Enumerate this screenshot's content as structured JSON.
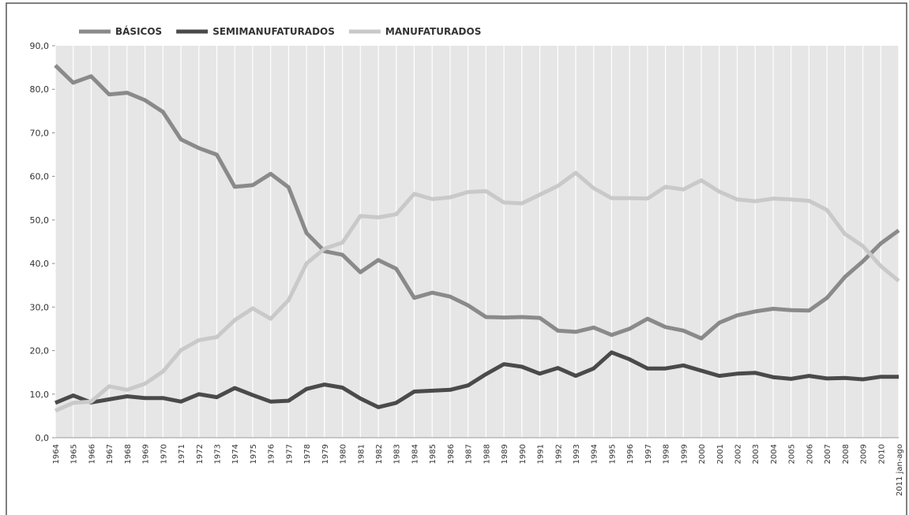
{
  "chart_data": {
    "type": "line",
    "categories": [
      "1964",
      "1965",
      "1966",
      "1967",
      "1968",
      "1969",
      "1970",
      "1971",
      "1972",
      "1973",
      "1974",
      "1975",
      "1976",
      "1977",
      "1978",
      "1979",
      "1980",
      "1981",
      "1982",
      "1983",
      "1984",
      "1985",
      "1986",
      "1987",
      "1988",
      "1989",
      "1990",
      "1991",
      "1992",
      "1993",
      "1994",
      "1995",
      "1996",
      "1997",
      "1998",
      "1999",
      "2000",
      "2001",
      "2002",
      "2003",
      "2004",
      "2005",
      "2006",
      "2007",
      "2008",
      "2009",
      "2010",
      "2011 jan-ago"
    ],
    "series": [
      {
        "name": "BÁSICOS",
        "color": "#8a8a8a",
        "values": [
          85.5,
          81.5,
          83,
          78.8,
          79.2,
          77.5,
          74.8,
          68.5,
          66.5,
          65,
          57.6,
          58,
          60.6,
          57.5,
          47,
          42.8,
          42,
          38,
          40.8,
          38.8,
          32.1,
          33.3,
          32.4,
          30.4,
          27.7,
          27.6,
          27.7,
          27.5,
          24.6,
          24.3,
          25.3,
          23.6,
          25,
          27.3,
          25.4,
          24.6,
          22.8,
          26.4,
          28.1,
          29,
          29.6,
          29.3,
          29.2,
          32.1,
          36.9,
          40.5,
          44.6,
          47.6
        ]
      },
      {
        "name": "SEMIMANUFATURADOS",
        "color": "#4a4a4a",
        "values": [
          8,
          9.7,
          8.1,
          8.8,
          9.5,
          9.1,
          9.1,
          8.3,
          10,
          9.3,
          11.4,
          9.8,
          8.3,
          8.5,
          11.2,
          12.2,
          11.5,
          9,
          7,
          8,
          10.6,
          10.8,
          11,
          12,
          14.6,
          16.9,
          16.3,
          14.7,
          16,
          14.2,
          15.9,
          19.6,
          18,
          15.9,
          15.9,
          16.6,
          15.4,
          14.2,
          14.7,
          14.9,
          13.9,
          13.5,
          14.2,
          13.6,
          13.7,
          13.4,
          14,
          14
        ]
      },
      {
        "name": "MANUFATURADOS",
        "color": "#c9c9c9",
        "values": [
          6.2,
          8,
          8.3,
          11.8,
          11,
          12.4,
          15.2,
          20.1,
          22.4,
          23.1,
          27,
          29.7,
          27.3,
          31.6,
          40,
          43.4,
          44.8,
          50.9,
          50.6,
          51.3,
          56,
          54.8,
          55.2,
          56.4,
          56.6,
          54,
          53.8,
          55.8,
          57.8,
          60.8,
          57.3,
          55,
          55,
          54.9,
          57.6,
          57,
          59.1,
          56.5,
          54.7,
          54.3,
          54.9,
          54.7,
          54.4,
          52.3,
          46.8,
          44,
          39.4,
          36
        ]
      }
    ],
    "ylim": [
      0,
      90
    ],
    "yticks": [
      {
        "value": 0,
        "label": "0,0"
      },
      {
        "value": 10,
        "label": "10,0"
      },
      {
        "value": 20,
        "label": "20,0"
      },
      {
        "value": 30,
        "label": "30,0"
      },
      {
        "value": 40,
        "label": "40,0"
      },
      {
        "value": 50,
        "label": "50,0"
      },
      {
        "value": 60,
        "label": "60,0"
      },
      {
        "value": 70,
        "label": "70,0"
      },
      {
        "value": 80,
        "label": "80,0"
      },
      {
        "value": 90,
        "label": "90,0"
      }
    ],
    "grid": true
  }
}
